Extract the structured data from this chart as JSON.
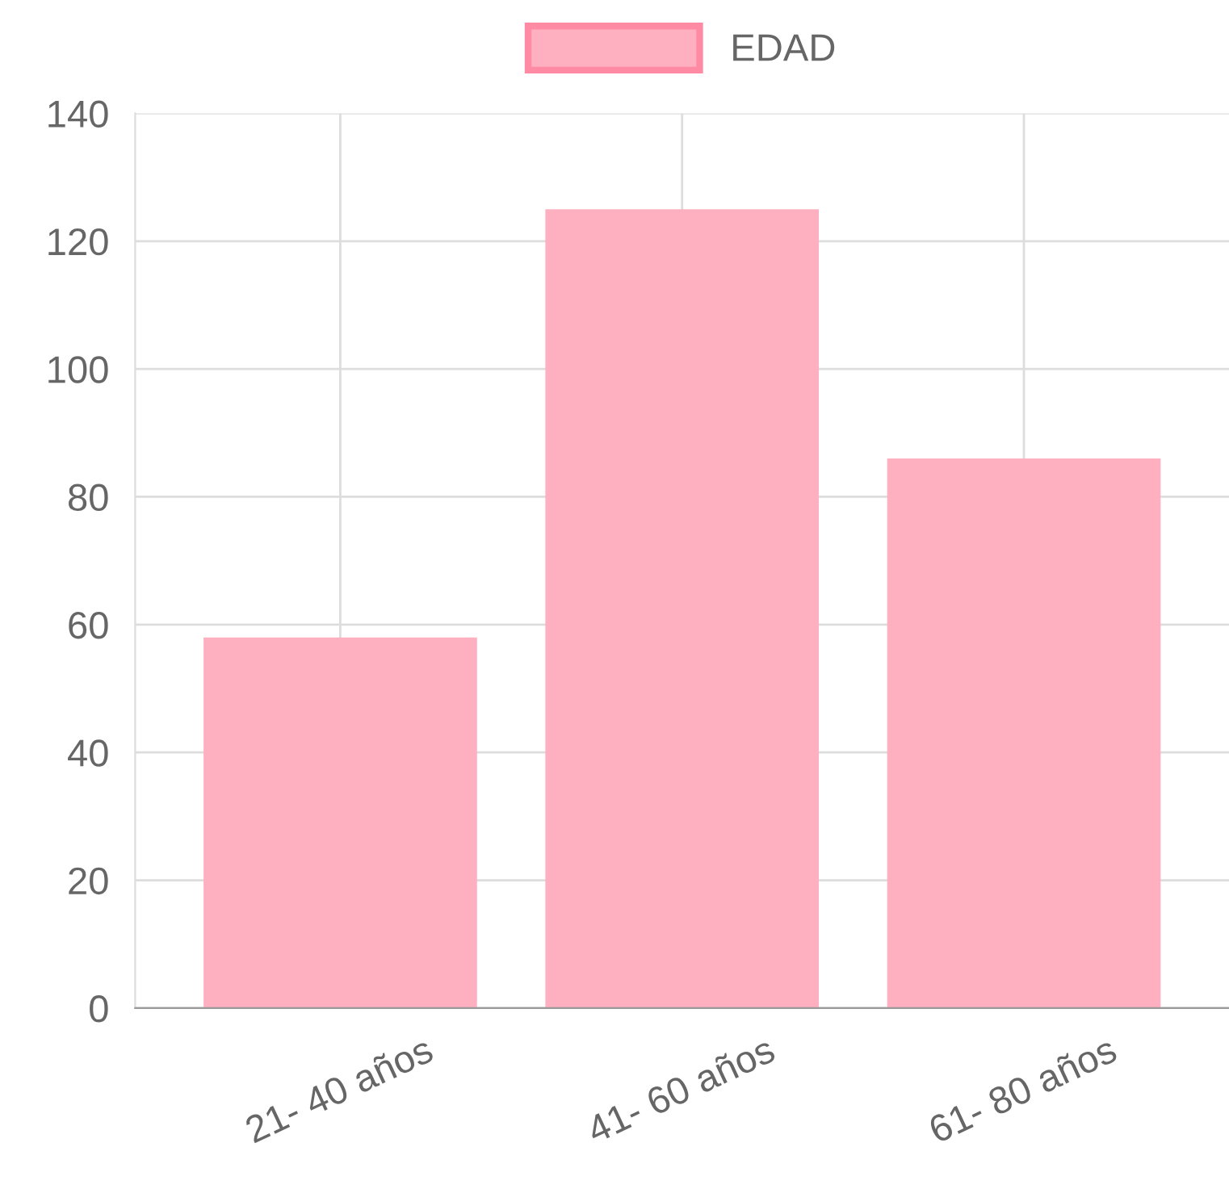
{
  "chart_data": {
    "type": "bar",
    "categories": [
      "21- 40 años",
      "41- 60 años",
      "61- 80 años"
    ],
    "series": [
      {
        "name": "EDAD",
        "color": "#feafc0",
        "values": [
          58,
          125,
          86
        ]
      }
    ],
    "ylim": [
      0,
      140
    ],
    "yticks": [
      0,
      20,
      40,
      60,
      80,
      100,
      120,
      140
    ],
    "grid": true,
    "legend": "top"
  }
}
